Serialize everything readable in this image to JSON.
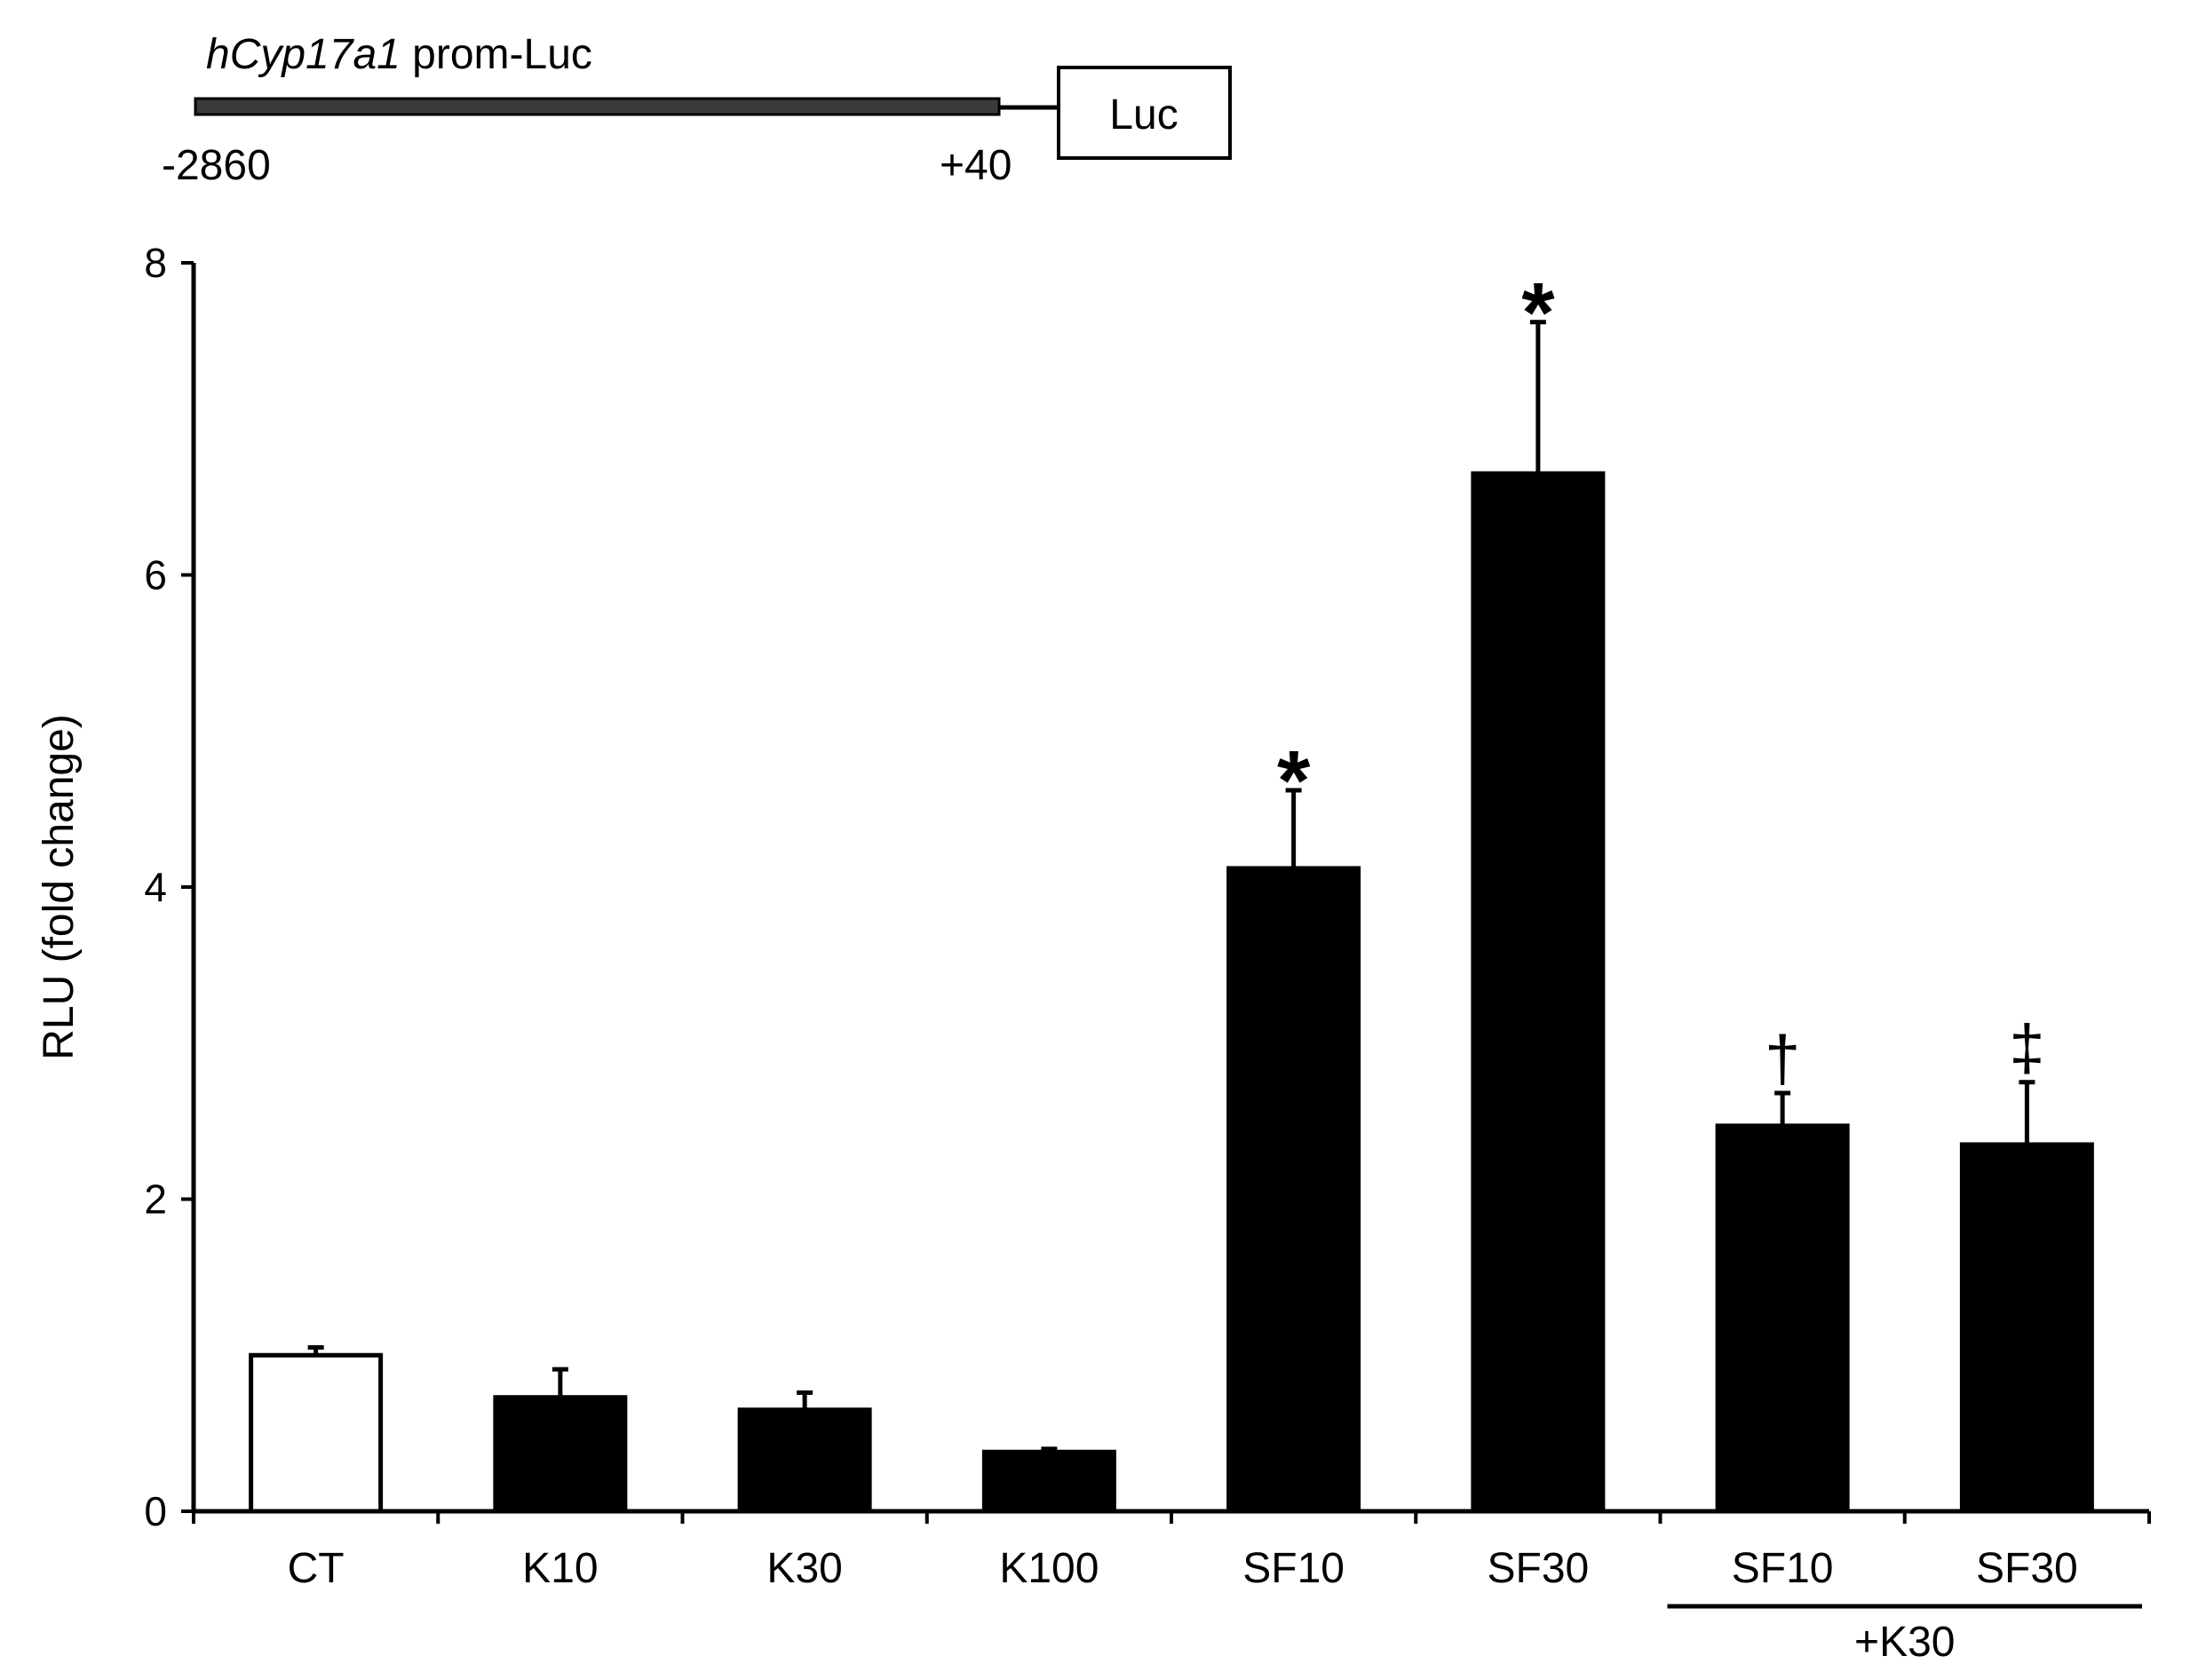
{
  "construct": {
    "gene_italic": "hCyp17a1",
    "suffix": " prom-Luc",
    "box_label": "Luc",
    "start_label": "-2860",
    "end_label": "+40"
  },
  "chart_data": {
    "type": "bar",
    "title": "",
    "xlabel": "",
    "ylabel": "RLU (fold change)",
    "ylim": [
      0,
      8
    ],
    "yticks": [
      "0",
      "2",
      "4",
      "6",
      "8"
    ],
    "grid": false,
    "categories": [
      "CT",
      "K10",
      "K30",
      "K100",
      "SF10",
      "SF30",
      "SF10",
      "SF30"
    ],
    "values": [
      1.0,
      0.73,
      0.65,
      0.38,
      4.12,
      6.65,
      2.47,
      2.35
    ],
    "errors": [
      0.05,
      0.18,
      0.11,
      0.02,
      0.5,
      0.97,
      0.21,
      0.4
    ],
    "fills": [
      "#ffffff",
      "#000000",
      "#000000",
      "#000000",
      "#000000",
      "#000000",
      "#000000",
      "#000000"
    ],
    "markers": [
      "",
      "",
      "",
      "",
      "*",
      "*",
      "†",
      "‡"
    ],
    "group_label": "+K30",
    "group_indices": [
      6,
      7
    ]
  }
}
